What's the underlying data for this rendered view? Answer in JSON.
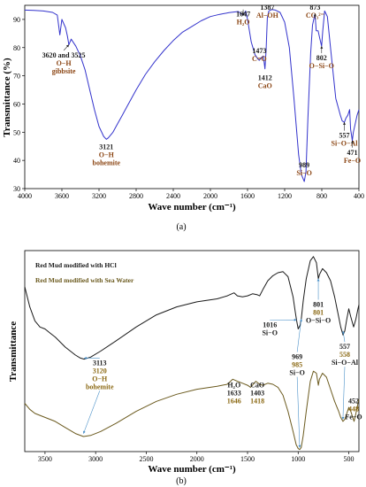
{
  "chart_data": [
    {
      "type": "line",
      "panel_label": "(a)",
      "xlabel": "Wave number (cm⁻¹)",
      "ylabel": "Transmittance (%)",
      "xlim": [
        4000,
        400
      ],
      "ylim": [
        30,
        95
      ],
      "x_ticks": [
        4000,
        3600,
        3200,
        2800,
        2400,
        2000,
        1600,
        1200,
        800,
        400
      ],
      "y_ticks": [
        30,
        40,
        50,
        60,
        70,
        80,
        90
      ],
      "colors": {
        "line": "#3333cc",
        "label_dark": "#1a1a1a",
        "label_brown": "#8b4513"
      },
      "series": [
        {
          "x": [
            4000,
            3900,
            3800,
            3700,
            3650,
            3622,
            3600,
            3560,
            3540,
            3525,
            3500,
            3450,
            3400,
            3350,
            3300,
            3250,
            3200,
            3150,
            3121,
            3100,
            3050,
            3000,
            2950,
            2900,
            2800,
            2700,
            2600,
            2500,
            2400,
            2300,
            2200,
            2100,
            2000,
            1900,
            1800,
            1700,
            1647,
            1620,
            1600,
            1560,
            1520,
            1490,
            1473,
            1450,
            1430,
            1412,
            1400,
            1387,
            1370,
            1340,
            1300,
            1250,
            1200,
            1150,
            1100,
            1050,
            1020,
            989,
            970,
            950,
            920,
            900,
            880,
            873,
            860,
            840,
            820,
            802,
            790,
            770,
            740,
            700,
            650,
            600,
            580,
            557,
            540,
            520,
            500,
            490,
            480,
            471,
            460,
            440,
            420,
            400
          ],
          "y": [
            93.3,
            93.2,
            93,
            92.5,
            91.5,
            84.5,
            90,
            87,
            84,
            81,
            83,
            80.5,
            77,
            72,
            65,
            58,
            52,
            48.5,
            47.5,
            48,
            50,
            53,
            56,
            59,
            65,
            70.5,
            75,
            79,
            82.5,
            85.5,
            87.5,
            89.5,
            91,
            91.8,
            92.4,
            92.8,
            91.5,
            93,
            90,
            82,
            77.5,
            76,
            75.5,
            76.5,
            77,
            72.5,
            79,
            90.5,
            93,
            93.5,
            93.3,
            92.5,
            89,
            80,
            62,
            42,
            35,
            32.5,
            36,
            55,
            78,
            88,
            91,
            92,
            86,
            86,
            83,
            80.5,
            86,
            93,
            91,
            78,
            62,
            56,
            54,
            53.5,
            55,
            56,
            58,
            51,
            49,
            47,
            50,
            53,
            56,
            58
          ]
        }
      ],
      "annotations": [
        {
          "lines": [
            "3620 and 3525",
            "O−H",
            "gibbsite"
          ],
          "x": 3580,
          "y": 76.5,
          "arrow_to": [
            3525,
            81
          ]
        },
        {
          "lines": [
            "3121",
            "O−H",
            "bohemite"
          ],
          "x": 3121,
          "y": 44,
          "arrow_to": [
            3121,
            47.5
          ]
        },
        {
          "lines": [
            "1647",
            "H₂O"
          ],
          "x": 1647,
          "y": 91,
          "arrow_to": [
            1647,
            91.5
          ]
        },
        {
          "lines": [
            "1387",
            "Al−OH"
          ],
          "x": 1387,
          "y": 93.5,
          "arrow_to": [
            1387,
            90.5
          ]
        },
        {
          "lines": [
            "1473",
            "C=O"
          ],
          "x": 1473,
          "y": 78,
          "arrow_to": [
            1473,
            75.5
          ]
        },
        {
          "lines": [
            "1412",
            "CaO"
          ],
          "x": 1412,
          "y": 68.5,
          "arrow_to": [
            1412,
            72.5
          ]
        },
        {
          "lines": [
            "873",
            "CO₃²⁻"
          ],
          "x": 873,
          "y": 93.5,
          "arrow_to": [
            873,
            92
          ]
        },
        {
          "lines": [
            "802",
            "O−Si−O"
          ],
          "x": 802,
          "y": 75.5,
          "arrow_to": [
            802,
            80.5
          ]
        },
        {
          "lines": [
            "989",
            "Si−O"
          ],
          "x": 989,
          "y": 37.5,
          "arrow_to": [
            989,
            32.5
          ]
        },
        {
          "lines": [
            "557",
            "Si−O−Al"
          ],
          "x": 557,
          "y": 48,
          "arrow_to": [
            557,
            53.5
          ]
        },
        {
          "lines": [
            "471",
            "Fe−O"
          ],
          "x": 471,
          "y": 42,
          "arrow_to": [
            471,
            47
          ]
        }
      ]
    },
    {
      "type": "line",
      "panel_label": "(b)",
      "xlabel": "Wave number (cm⁻¹)",
      "ylabel": "Transmittance",
      "xlim": [
        3700,
        400
      ],
      "ylim": [
        0,
        100
      ],
      "x_ticks": [
        3500,
        3000,
        2500,
        2000,
        1500,
        1000,
        500
      ],
      "y_ticks": [],
      "colors": {
        "hcl": "#1a1a1a",
        "sea": "#6b5a1e",
        "label_brown": "#8b6914",
        "arrow": "#4a90c8"
      },
      "legend": [
        {
          "name": "Red Mud modified with HCl",
          "color": "#1a1a1a"
        },
        {
          "name": "Red Mud modified with Sea Water",
          "color": "#6b5a1e"
        }
      ],
      "series": [
        {
          "name": "Red Mud modified with HCl",
          "x": [
            3700,
            3650,
            3600,
            3550,
            3500,
            3450,
            3400,
            3300,
            3200,
            3150,
            3113,
            3050,
            2950,
            2800,
            2600,
            2400,
            2200,
            2000,
            1800,
            1700,
            1633,
            1600,
            1550,
            1500,
            1450,
            1403,
            1380,
            1350,
            1300,
            1250,
            1200,
            1150,
            1100,
            1050,
            1030,
            1016,
            1000,
            980,
            969,
            950,
            920,
            880,
            850,
            820,
            801,
            790,
            760,
            720,
            680,
            640,
            600,
            580,
            557,
            540,
            520,
            500,
            480,
            452,
            430,
            410,
            400
          ],
          "y": [
            82,
            72,
            65,
            62,
            61,
            59,
            57,
            52,
            48,
            46.5,
            46,
            47,
            50,
            55,
            62,
            68,
            72,
            74.5,
            76,
            77.5,
            79,
            77.5,
            77,
            77.5,
            78.5,
            78,
            77.5,
            80.5,
            85,
            87.5,
            89,
            89.5,
            87,
            77,
            70,
            65.5,
            61,
            63,
            66,
            75,
            86,
            95,
            97,
            94,
            86,
            88,
            91,
            89,
            85,
            77,
            67,
            62,
            58,
            60,
            66,
            71,
            67,
            62,
            66,
            71,
            73
          ]
        },
        {
          "name": "Red Mud modified with Sea Water",
          "x": [
            3700,
            3650,
            3600,
            3550,
            3500,
            3400,
            3300,
            3200,
            3120,
            3050,
            2950,
            2800,
            2600,
            2400,
            2200,
            2000,
            1800,
            1700,
            1646,
            1600,
            1550,
            1500,
            1470,
            1418,
            1380,
            1350,
            1300,
            1250,
            1200,
            1150,
            1100,
            1050,
            1020,
            1000,
            985,
            970,
            950,
            920,
            880,
            850,
            820,
            801,
            790,
            760,
            720,
            680,
            640,
            600,
            580,
            558,
            540,
            520,
            500,
            480,
            448,
            430,
            410,
            400
          ],
          "y": [
            24,
            21,
            19,
            18,
            17,
            15,
            12,
            9,
            7.5,
            8,
            10,
            14,
            20,
            25,
            28.5,
            31,
            32.5,
            33.5,
            36,
            35,
            34,
            33,
            32,
            35,
            33.5,
            33,
            34,
            33.5,
            32,
            28,
            20,
            10,
            3.5,
            1.5,
            1,
            2,
            8,
            20,
            35,
            40,
            39,
            33,
            36,
            39,
            37,
            31,
            25,
            20,
            17,
            15,
            16,
            19,
            22,
            20,
            15,
            19,
            24,
            26
          ]
        }
      ],
      "annotations": [
        {
          "lines": [
            "3113",
            "3120",
            "O−H",
            "bohemite"
          ],
          "x": 2960,
          "y": 43,
          "arrows_to": [
            [
              3113,
              46.5
            ],
            [
              3120,
              9
            ]
          ]
        },
        {
          "lines": [
            "1016",
            "Si−O"
          ],
          "x": 1280,
          "y": 62,
          "arrow_to": [
            1016,
            65.5
          ]
        },
        {
          "lines": [
            "801",
            "801",
            "O−Si−O"
          ],
          "x": 801,
          "y": 72,
          "arrow_to": [
            801,
            86
          ]
        },
        {
          "lines": [
            "969",
            "985",
            "Si−O"
          ],
          "x": 1010,
          "y": 46,
          "arrows_to": [
            [
              969,
              66
            ],
            [
              985,
              2
            ]
          ]
        },
        {
          "lines": [
            "557",
            "558",
            "Si−O−Al"
          ],
          "x": 540,
          "y": 51,
          "arrows_to": [
            [
              557,
              60
            ],
            [
              558,
              16
            ]
          ]
        },
        {
          "lines": [
            "H₂O",
            "1633",
            "1646"
          ],
          "x": 1633,
          "y": 32,
          "arrow_to": [
            1646,
            36
          ]
        },
        {
          "lines": [
            "CaO",
            "1403",
            "1418"
          ],
          "x": 1403,
          "y": 32,
          "arrow_to": [
            1418,
            35
          ]
        },
        {
          "lines": [
            "452",
            "448",
            "Fe−O"
          ],
          "x": 452,
          "y": 24,
          "arrow_to": [
            448,
            16
          ]
        }
      ]
    }
  ]
}
